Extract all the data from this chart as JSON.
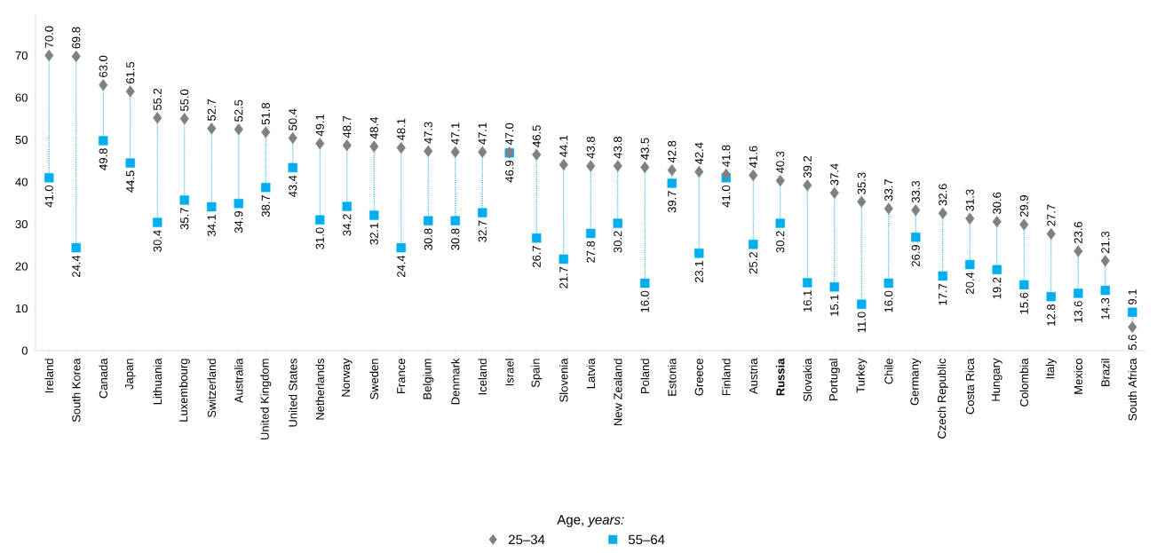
{
  "chart_data": {
    "type": "scatter",
    "categories": [
      "Ireland",
      "South Korea",
      "Canada",
      "Japan",
      "Lithuania",
      "Luxembourg",
      "Switzerland",
      "Australia",
      "United Kingdom",
      "United States",
      "Netherlands",
      "Norway",
      "Sweden",
      "France",
      "Belgium",
      "Denmark",
      "Iceland",
      "Israel",
      "Spain",
      "Slovenia",
      "Latvia",
      "New Zealand",
      "Poland",
      "Estonia",
      "Greece",
      "Finland",
      "Austria",
      "**Russia**",
      "Slovakia",
      "Portugal",
      "Turkey",
      "Chile",
      "Germany",
      "Czech Republic",
      "Costa Rica",
      "Hungary",
      "Colombia",
      "Italy",
      "Mexico",
      "Brazil",
      "South Africa"
    ],
    "series": [
      {
        "name": "25–34",
        "color": "#808083",
        "marker": "diamond",
        "values": [
          70.0,
          69.8,
          63.0,
          61.5,
          55.2,
          55.0,
          52.7,
          52.5,
          51.8,
          50.4,
          49.1,
          48.7,
          48.4,
          48.1,
          47.3,
          47.1,
          47.1,
          47.0,
          46.5,
          44.1,
          43.8,
          43.8,
          43.5,
          42.8,
          42.4,
          41.8,
          41.6,
          40.3,
          39.2,
          37.4,
          35.3,
          33.7,
          33.3,
          32.6,
          31.3,
          30.6,
          29.9,
          27.7,
          23.6,
          21.3,
          5.6
        ],
        "value_labels": [
          "70.0",
          "69.8",
          "63.0",
          "61.5",
          "55.2",
          "55.0",
          "52.7",
          "52.5",
          "51.8",
          "50.4",
          "49.1",
          "48.7",
          "48.4",
          "48.1",
          "47.3",
          "47.1",
          "47.1",
          "47.0",
          "46.5",
          "44.1",
          "43.8",
          "43.8",
          "43.5",
          "42.8",
          "42.4",
          "41.8",
          "41.6",
          "40.3",
          "39.2",
          "37.4",
          "35.3",
          "33.7",
          "33.3",
          "32.6",
          "31.3",
          "30.6",
          "29.9",
          "27.7",
          "23.6",
          "21.3",
          "5.6"
        ]
      },
      {
        "name": "55–64",
        "color": "#00aeef",
        "marker": "square",
        "values": [
          41.0,
          24.4,
          49.8,
          44.5,
          30.4,
          35.7,
          34.1,
          34.9,
          38.7,
          43.4,
          31.0,
          34.2,
          32.1,
          24.4,
          30.8,
          30.8,
          32.7,
          46.9,
          26.7,
          21.7,
          27.8,
          30.2,
          16.0,
          39.7,
          23.1,
          41.0,
          25.2,
          30.2,
          16.1,
          15.1,
          11.0,
          16.0,
          26.9,
          17.7,
          20.4,
          19.2,
          15.6,
          12.8,
          13.6,
          14.3,
          9.1
        ],
        "value_labels": [
          "41.0",
          "24.4",
          "49.8",
          "44.5",
          "30.4",
          "35.7",
          "34.1",
          "34.9",
          "38.7",
          "43.4",
          "31.0",
          "34.2",
          "32.1",
          "24.4",
          "30.8",
          "30.8",
          "32.7",
          "46.9",
          "26.7",
          "21.7",
          "27.8",
          "30.2",
          "16.0",
          "39.7",
          "23.1",
          "41.0",
          "25.2",
          "30.2",
          "16.1",
          "15.1",
          "11.0",
          "16.0",
          "26.9",
          "17.7",
          "20.4",
          "19.2",
          "15.6",
          "12.8",
          "13.6",
          "14.3",
          "9.1"
        ]
      }
    ],
    "legend_title": "Age, *years:*",
    "ylim": [
      0,
      80
    ],
    "yticks": [
      0,
      10,
      20,
      30,
      40,
      50,
      60,
      70
    ],
    "legend": "bottom"
  }
}
